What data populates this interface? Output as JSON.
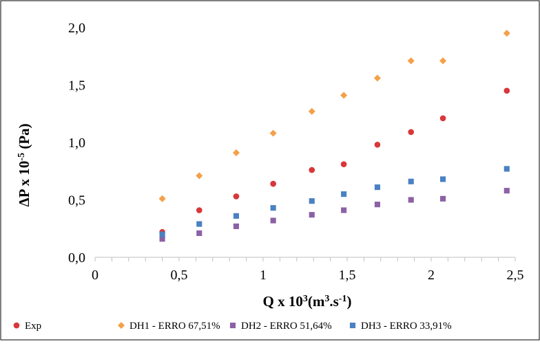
{
  "chart_data": {
    "type": "scatter",
    "title": "",
    "xlabel": {
      "main": "Q x 10",
      "sup1": "3",
      "mid": "(m",
      "sup2": "3",
      "end": ".s",
      "sup3": "-1",
      "close": ")"
    },
    "ylabel": {
      "main": "ΔP x 10",
      "sup": "-5",
      "end": " (Pa)"
    },
    "xlim": [
      0,
      2.5
    ],
    "ylim": [
      0,
      2.0
    ],
    "xticks": [
      0,
      0.5,
      1,
      1.5,
      2,
      2.5
    ],
    "xtick_labels": [
      "0",
      "0,5",
      "1",
      "1,5",
      "2",
      "2,5"
    ],
    "yticks": [
      0,
      0.5,
      1.0,
      1.5,
      2.0
    ],
    "ytick_labels": [
      "0,0",
      "0,5",
      "1,0",
      "1,5",
      "2,0"
    ],
    "grid": false,
    "legend_position": "bottom",
    "series": [
      {
        "name": "Exp",
        "color": "#d9373a",
        "marker": "circle",
        "x": [
          0.4,
          0.62,
          0.84,
          1.06,
          1.29,
          1.48,
          1.68,
          1.88,
          2.07,
          2.45
        ],
        "y": [
          0.22,
          0.41,
          0.53,
          0.64,
          0.76,
          0.81,
          0.98,
          1.09,
          1.21,
          1.45
        ]
      },
      {
        "name": "DH1 - ERRO 67,51%",
        "color": "#f5a04a",
        "marker": "diamond",
        "x": [
          0.4,
          0.62,
          0.84,
          1.06,
          1.29,
          1.48,
          1.68,
          1.88,
          2.07,
          2.45
        ],
        "y": [
          0.51,
          0.71,
          0.91,
          1.08,
          1.27,
          1.41,
          1.56,
          1.71,
          1.71,
          1.95
        ]
      },
      {
        "name": "DH2 - ERRO 51,64%",
        "color": "#8b61a6",
        "marker": "square",
        "x": [
          0.4,
          0.62,
          0.84,
          1.06,
          1.29,
          1.48,
          1.68,
          1.88,
          2.07,
          2.45
        ],
        "y": [
          0.16,
          0.21,
          0.27,
          0.32,
          0.37,
          0.41,
          0.46,
          0.5,
          0.51,
          0.58
        ]
      },
      {
        "name": "DH3 - ERRO 33,91%",
        "color": "#4a81c2",
        "marker": "square",
        "x": [
          0.4,
          0.62,
          0.84,
          1.06,
          1.29,
          1.48,
          1.68,
          1.88,
          2.07,
          2.45
        ],
        "y": [
          0.2,
          0.29,
          0.36,
          0.43,
          0.49,
          0.55,
          0.61,
          0.66,
          0.68,
          0.77
        ]
      }
    ]
  }
}
